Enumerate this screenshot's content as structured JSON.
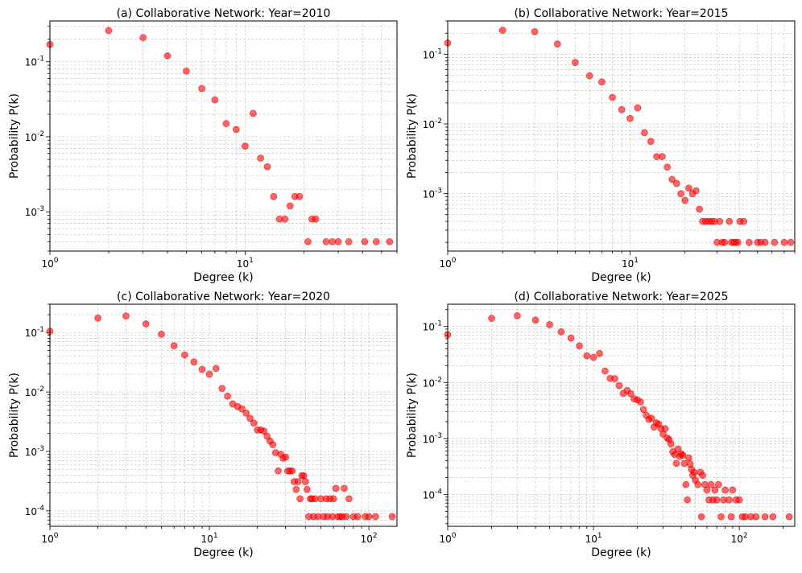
{
  "chart_data": [
    {
      "type": "scatter",
      "title": "(a) Collaborative Network: Year=2010",
      "xlabel": "Degree (k)",
      "ylabel": "Probability P(k)",
      "xscale": "log",
      "yscale": "log",
      "xlim": [
        1,
        60
      ],
      "ylim": [
        0.0003,
        0.35
      ],
      "xticks": [
        {
          "v": 1,
          "label": "10^0"
        },
        {
          "v": 10,
          "label": "10^1"
        }
      ],
      "yticks": [
        {
          "v": 0.1,
          "label": "10^-1"
        },
        {
          "v": 0.01,
          "label": "10^-2"
        },
        {
          "v": 0.001,
          "label": "10^-3"
        }
      ],
      "points": [
        [
          1,
          0.17
        ],
        [
          2,
          0.26
        ],
        [
          3,
          0.21
        ],
        [
          4,
          0.12
        ],
        [
          5,
          0.075
        ],
        [
          6,
          0.044
        ],
        [
          7,
          0.031
        ],
        [
          8,
          0.015
        ],
        [
          9,
          0.0125
        ],
        [
          10,
          0.0075
        ],
        [
          11,
          0.0205
        ],
        [
          12,
          0.0052
        ],
        [
          13,
          0.004
        ],
        [
          14,
          0.0016
        ],
        [
          15,
          0.0008
        ],
        [
          16,
          0.0008
        ],
        [
          17,
          0.0012
        ],
        [
          18,
          0.0016
        ],
        [
          19,
          0.0016
        ],
        [
          21,
          0.0004
        ],
        [
          22,
          0.0008
        ],
        [
          23,
          0.0008
        ],
        [
          26,
          0.0004
        ],
        [
          28,
          0.0004
        ],
        [
          30,
          0.0004
        ],
        [
          34,
          0.0004
        ],
        [
          41,
          0.0004
        ],
        [
          47,
          0.0004
        ],
        [
          55,
          0.0004
        ]
      ]
    },
    {
      "type": "scatter",
      "title": "(b) Collaborative Network: Year=2015",
      "xlabel": "Degree (k)",
      "ylabel": "Probability P(k)",
      "xscale": "log",
      "yscale": "log",
      "xlim": [
        1,
        80
      ],
      "ylim": [
        0.00015,
        0.3
      ],
      "xticks": [
        {
          "v": 1,
          "label": "10^0"
        },
        {
          "v": 10,
          "label": "10^1"
        }
      ],
      "yticks": [
        {
          "v": 0.1,
          "label": "10^-1"
        },
        {
          "v": 0.01,
          "label": "10^-2"
        },
        {
          "v": 0.001,
          "label": "10^-3"
        }
      ],
      "points": [
        [
          1,
          0.145
        ],
        [
          2,
          0.22
        ],
        [
          3,
          0.21
        ],
        [
          4,
          0.14
        ],
        [
          5,
          0.076
        ],
        [
          6,
          0.049
        ],
        [
          7,
          0.04
        ],
        [
          8,
          0.024
        ],
        [
          9,
          0.016
        ],
        [
          10,
          0.012
        ],
        [
          11,
          0.017
        ],
        [
          12,
          0.0075
        ],
        [
          13,
          0.0056
        ],
        [
          14,
          0.0034
        ],
        [
          15,
          0.0034
        ],
        [
          16,
          0.0024
        ],
        [
          17,
          0.0016
        ],
        [
          18,
          0.0014
        ],
        [
          19,
          0.001
        ],
        [
          20,
          0.0008
        ],
        [
          21,
          0.0012
        ],
        [
          22,
          0.001
        ],
        [
          23,
          0.0011
        ],
        [
          24,
          0.0006
        ],
        [
          25,
          0.0004
        ],
        [
          26,
          0.0004
        ],
        [
          27,
          0.0004
        ],
        [
          28,
          0.0004
        ],
        [
          29,
          0.0004
        ],
        [
          30,
          0.0002
        ],
        [
          31,
          0.0004
        ],
        [
          32,
          0.0002
        ],
        [
          33,
          0.0002
        ],
        [
          35,
          0.0004
        ],
        [
          36,
          0.0002
        ],
        [
          37,
          0.0002
        ],
        [
          38,
          0.0002
        ],
        [
          39,
          0.0002
        ],
        [
          40,
          0.0004
        ],
        [
          42,
          0.0004
        ],
        [
          45,
          0.0002
        ],
        [
          50,
          0.0002
        ],
        [
          52,
          0.0002
        ],
        [
          55,
          0.0002
        ],
        [
          62,
          0.0002
        ],
        [
          70,
          0.0002
        ],
        [
          76,
          0.0002
        ]
      ]
    },
    {
      "type": "scatter",
      "title": "(c) Collaborative Network: Year=2020",
      "xlabel": "Degree (k)",
      "ylabel": "Probability P(k)",
      "xscale": "log",
      "yscale": "log",
      "xlim": [
        1,
        150
      ],
      "ylim": [
        5.5e-05,
        0.3
      ],
      "xticks": [
        {
          "v": 1,
          "label": "10^0"
        },
        {
          "v": 10,
          "label": "10^1"
        },
        {
          "v": 100,
          "label": "10^2"
        }
      ],
      "yticks": [
        {
          "v": 0.1,
          "label": "10^-1"
        },
        {
          "v": 0.01,
          "label": "10^-2"
        },
        {
          "v": 0.001,
          "label": "10^-3"
        },
        {
          "v": 0.0001,
          "label": "10^-4"
        }
      ],
      "points": [
        [
          1,
          0.105
        ],
        [
          2,
          0.175
        ],
        [
          3,
          0.19
        ],
        [
          4,
          0.14
        ],
        [
          5,
          0.094
        ],
        [
          6,
          0.06
        ],
        [
          7,
          0.042
        ],
        [
          8,
          0.032
        ],
        [
          9,
          0.024
        ],
        [
          10,
          0.02
        ],
        [
          11,
          0.025
        ],
        [
          12,
          0.0115
        ],
        [
          13,
          0.0085
        ],
        [
          14,
          0.0063
        ],
        [
          15,
          0.0057
        ],
        [
          16,
          0.0052
        ],
        [
          17,
          0.0044
        ],
        [
          18,
          0.0036
        ],
        [
          19,
          0.003
        ],
        [
          20,
          0.0023
        ],
        [
          21,
          0.0023
        ],
        [
          22,
          0.0022
        ],
        [
          23,
          0.0018
        ],
        [
          24,
          0.0015
        ],
        [
          25,
          0.0013
        ],
        [
          26,
          0.00095
        ],
        [
          27,
          0.00047
        ],
        [
          28,
          0.0009
        ],
        [
          29,
          0.00077
        ],
        [
          30,
          0.0008
        ],
        [
          31,
          0.00047
        ],
        [
          32,
          0.00047
        ],
        [
          33,
          0.00047
        ],
        [
          34,
          0.00031
        ],
        [
          35,
          0.00023
        ],
        [
          36,
          0.00031
        ],
        [
          37,
          0.00016
        ],
        [
          38,
          0.00039
        ],
        [
          39,
          0.00039
        ],
        [
          40,
          0.00031
        ],
        [
          41,
          0.00023
        ],
        [
          42,
          8e-05
        ],
        [
          43,
          0.00016
        ],
        [
          44,
          0.00016
        ],
        [
          45,
          8e-05
        ],
        [
          46,
          0.00016
        ],
        [
          48,
          8e-05
        ],
        [
          50,
          0.00016
        ],
        [
          52,
          8e-05
        ],
        [
          54,
          0.00016
        ],
        [
          55,
          8e-05
        ],
        [
          57,
          0.00016
        ],
        [
          59,
          8e-05
        ],
        [
          60,
          0.00016
        ],
        [
          62,
          0.00024
        ],
        [
          64,
          8e-05
        ],
        [
          66,
          8e-05
        ],
        [
          68,
          8e-05
        ],
        [
          70,
          0.00024
        ],
        [
          72,
          8e-05
        ],
        [
          75,
          0.00016
        ],
        [
          80,
          8e-05
        ],
        [
          85,
          8e-05
        ],
        [
          95,
          8e-05
        ],
        [
          100,
          8e-05
        ],
        [
          110,
          8e-05
        ],
        [
          140,
          8e-05
        ]
      ]
    },
    {
      "type": "scatter",
      "title": "(d) Collaborative Network: Year=2025",
      "xlabel": "Degree (k)",
      "ylabel": "Probability P(k)",
      "xscale": "log",
      "yscale": "log",
      "xlim": [
        1,
        240
      ],
      "ylim": [
        2.7e-05,
        0.25
      ],
      "xticks": [
        {
          "v": 1,
          "label": "10^0"
        },
        {
          "v": 10,
          "label": "10^1"
        },
        {
          "v": 100,
          "label": "10^2"
        }
      ],
      "yticks": [
        {
          "v": 0.1,
          "label": "10^-1"
        },
        {
          "v": 0.01,
          "label": "10^-2"
        },
        {
          "v": 0.001,
          "label": "10^-3"
        },
        {
          "v": 0.0001,
          "label": "10^-4"
        }
      ],
      "points": [
        [
          1,
          0.071
        ],
        [
          2,
          0.14
        ],
        [
          3,
          0.155
        ],
        [
          4,
          0.13
        ],
        [
          5,
          0.108
        ],
        [
          6,
          0.08
        ],
        [
          7,
          0.062
        ],
        [
          8,
          0.045
        ],
        [
          9,
          0.03
        ],
        [
          10,
          0.028
        ],
        [
          11,
          0.033
        ],
        [
          12,
          0.016
        ],
        [
          13,
          0.0118
        ],
        [
          14,
          0.0117
        ],
        [
          15,
          0.0088
        ],
        [
          16,
          0.0064
        ],
        [
          17,
          0.0072
        ],
        [
          18,
          0.0063
        ],
        [
          19,
          0.0051
        ],
        [
          20,
          0.0049
        ],
        [
          21,
          0.0045
        ],
        [
          22,
          0.0033
        ],
        [
          23,
          0.0026
        ],
        [
          24,
          0.0022
        ],
        [
          25,
          0.0023
        ],
        [
          26,
          0.0016
        ],
        [
          27,
          0.0019
        ],
        [
          28,
          0.0018
        ],
        [
          29,
          0.0015
        ],
        [
          30,
          0.0012
        ],
        [
          31,
          0.0015
        ],
        [
          32,
          0.00102
        ],
        [
          33,
          0.00096
        ],
        [
          34,
          0.0008
        ],
        [
          35,
          0.00058
        ],
        [
          36,
          0.00052
        ],
        [
          37,
          0.00036
        ],
        [
          38,
          0.00065
        ],
        [
          39,
          0.00048
        ],
        [
          40,
          0.00053
        ],
        [
          41,
          0.0005
        ],
        [
          42,
          0.00036
        ],
        [
          43,
          0.00015
        ],
        [
          44,
          8e-05
        ],
        [
          45,
          0.00045
        ],
        [
          46,
          0.00035
        ],
        [
          47,
          0.00028
        ],
        [
          48,
          0.00022
        ],
        [
          49,
          0.00025
        ],
        [
          50,
          0.00018
        ],
        [
          52,
          0.00015
        ],
        [
          54,
          0.00025
        ],
        [
          55,
          4e-05
        ],
        [
          56,
          0.00022
        ],
        [
          58,
          0.00015
        ],
        [
          60,
          0.00012
        ],
        [
          62,
          8e-05
        ],
        [
          64,
          0.00015
        ],
        [
          66,
          8e-05
        ],
        [
          68,
          0.00012
        ],
        [
          70,
          8e-05
        ],
        [
          72,
          0.00015
        ],
        [
          75,
          4e-05
        ],
        [
          78,
          8e-05
        ],
        [
          80,
          0.00012
        ],
        [
          85,
          8e-05
        ],
        [
          88,
          4e-05
        ],
        [
          90,
          0.00012
        ],
        [
          95,
          8e-05
        ],
        [
          100,
          8e-05
        ],
        [
          105,
          4e-05
        ],
        [
          110,
          4e-05
        ],
        [
          120,
          4e-05
        ],
        [
          130,
          4e-05
        ],
        [
          150,
          4e-05
        ],
        [
          170,
          4e-05
        ],
        [
          220,
          4e-05
        ]
      ]
    }
  ]
}
